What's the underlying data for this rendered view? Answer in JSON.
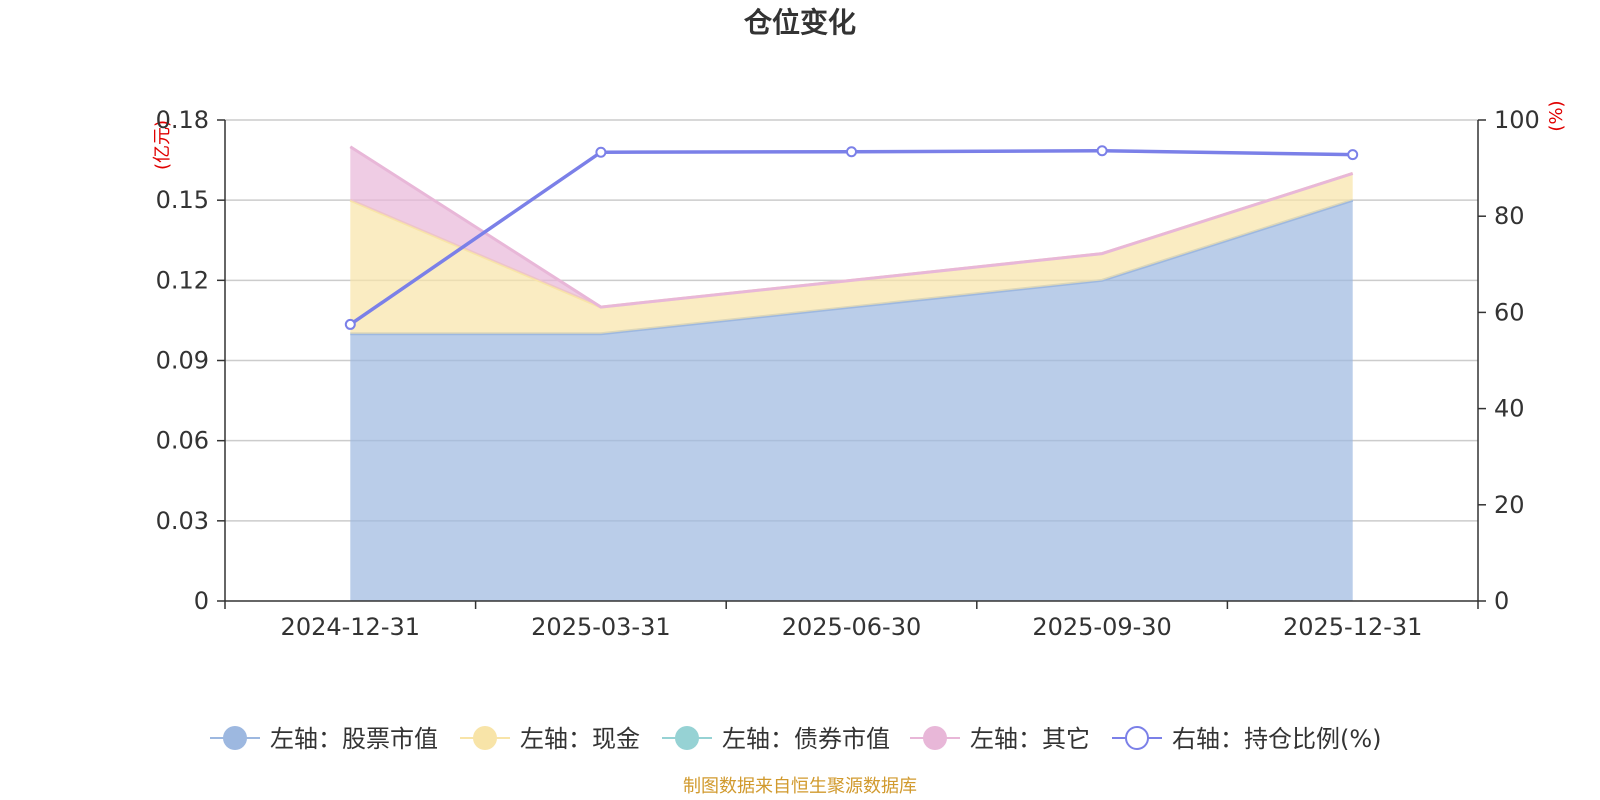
{
  "chart_data": {
    "type": "area",
    "title": "仓位变化",
    "categories": [
      "2024-12-31",
      "2025-03-31",
      "2025-06-30",
      "2025-09-30",
      "2025-12-31"
    ],
    "left_axis": {
      "unit": "(亿元)",
      "ylim": [
        0,
        0.18
      ],
      "ticks": [
        "0",
        "0.03",
        "0.06",
        "0.09",
        "0.12",
        "0.15",
        "0.18"
      ]
    },
    "right_axis": {
      "unit": "(%)",
      "ylim": [
        0,
        100
      ],
      "ticks": [
        "0",
        "20",
        "40",
        "60",
        "80",
        "100"
      ]
    },
    "stacked_series": [
      {
        "name": "左轴：股票市值",
        "color": "#9db8e0",
        "values": [
          0.1,
          0.1,
          0.11,
          0.12,
          0.15
        ]
      },
      {
        "name": "左轴：现金",
        "color": "#f8e4a8",
        "values": [
          0.05,
          0.01,
          0.01,
          0.01,
          0.01
        ]
      },
      {
        "name": "左轴：债券市值",
        "color": "#96d2d4",
        "values": [
          0,
          0,
          0,
          0,
          0
        ]
      },
      {
        "name": "左轴：其它",
        "color": "#e8b7d8",
        "values": [
          0.02,
          0.0,
          0.0,
          0.0,
          0.0
        ]
      }
    ],
    "line_series": {
      "name": "右轴：持仓比例(%)",
      "color": "#7b80e8",
      "values": [
        57.5,
        93.3,
        93.4,
        93.6,
        92.8
      ]
    },
    "grid": true,
    "legend_position": "bottom"
  },
  "source_note": "制图数据来自恒生聚源数据库"
}
